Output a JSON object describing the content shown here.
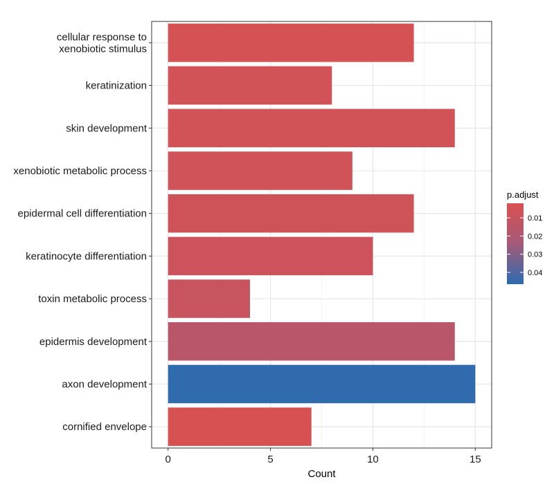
{
  "chart_data": {
    "type": "bar",
    "orientation": "horizontal",
    "categories": [
      "cellular response to\nxenobiotic stimulus",
      "keratinization",
      "skin development",
      "xenobiotic metabolic process",
      "epidermal cell differentiation",
      "keratinocyte differentiation",
      "toxin metabolic process",
      "epidermis development",
      "axon development",
      "cornified envelope"
    ],
    "values": [
      12,
      8,
      14,
      9,
      12,
      10,
      4,
      14,
      15,
      7
    ],
    "p_adjust": [
      0.0035,
      0.0055,
      0.0055,
      0.006,
      0.0065,
      0.0075,
      0.0095,
      0.0155,
      0.0455,
      0.0025
    ],
    "xlabel": "Count",
    "ylabel": "",
    "xlim": [
      -0.8,
      15.8
    ],
    "xticks": [
      0,
      5,
      10,
      15
    ],
    "grid": true,
    "legend": {
      "title": "p.adjust",
      "placement": "right",
      "ticks": [
        "0.01",
        "0.02",
        "0.03",
        "0.04"
      ],
      "tick_values": [
        0.01,
        0.02,
        0.03,
        0.04
      ],
      "range": [
        0.002,
        0.0465
      ],
      "low_color": "#d95151",
      "high_color": "#2b6cb0"
    }
  }
}
